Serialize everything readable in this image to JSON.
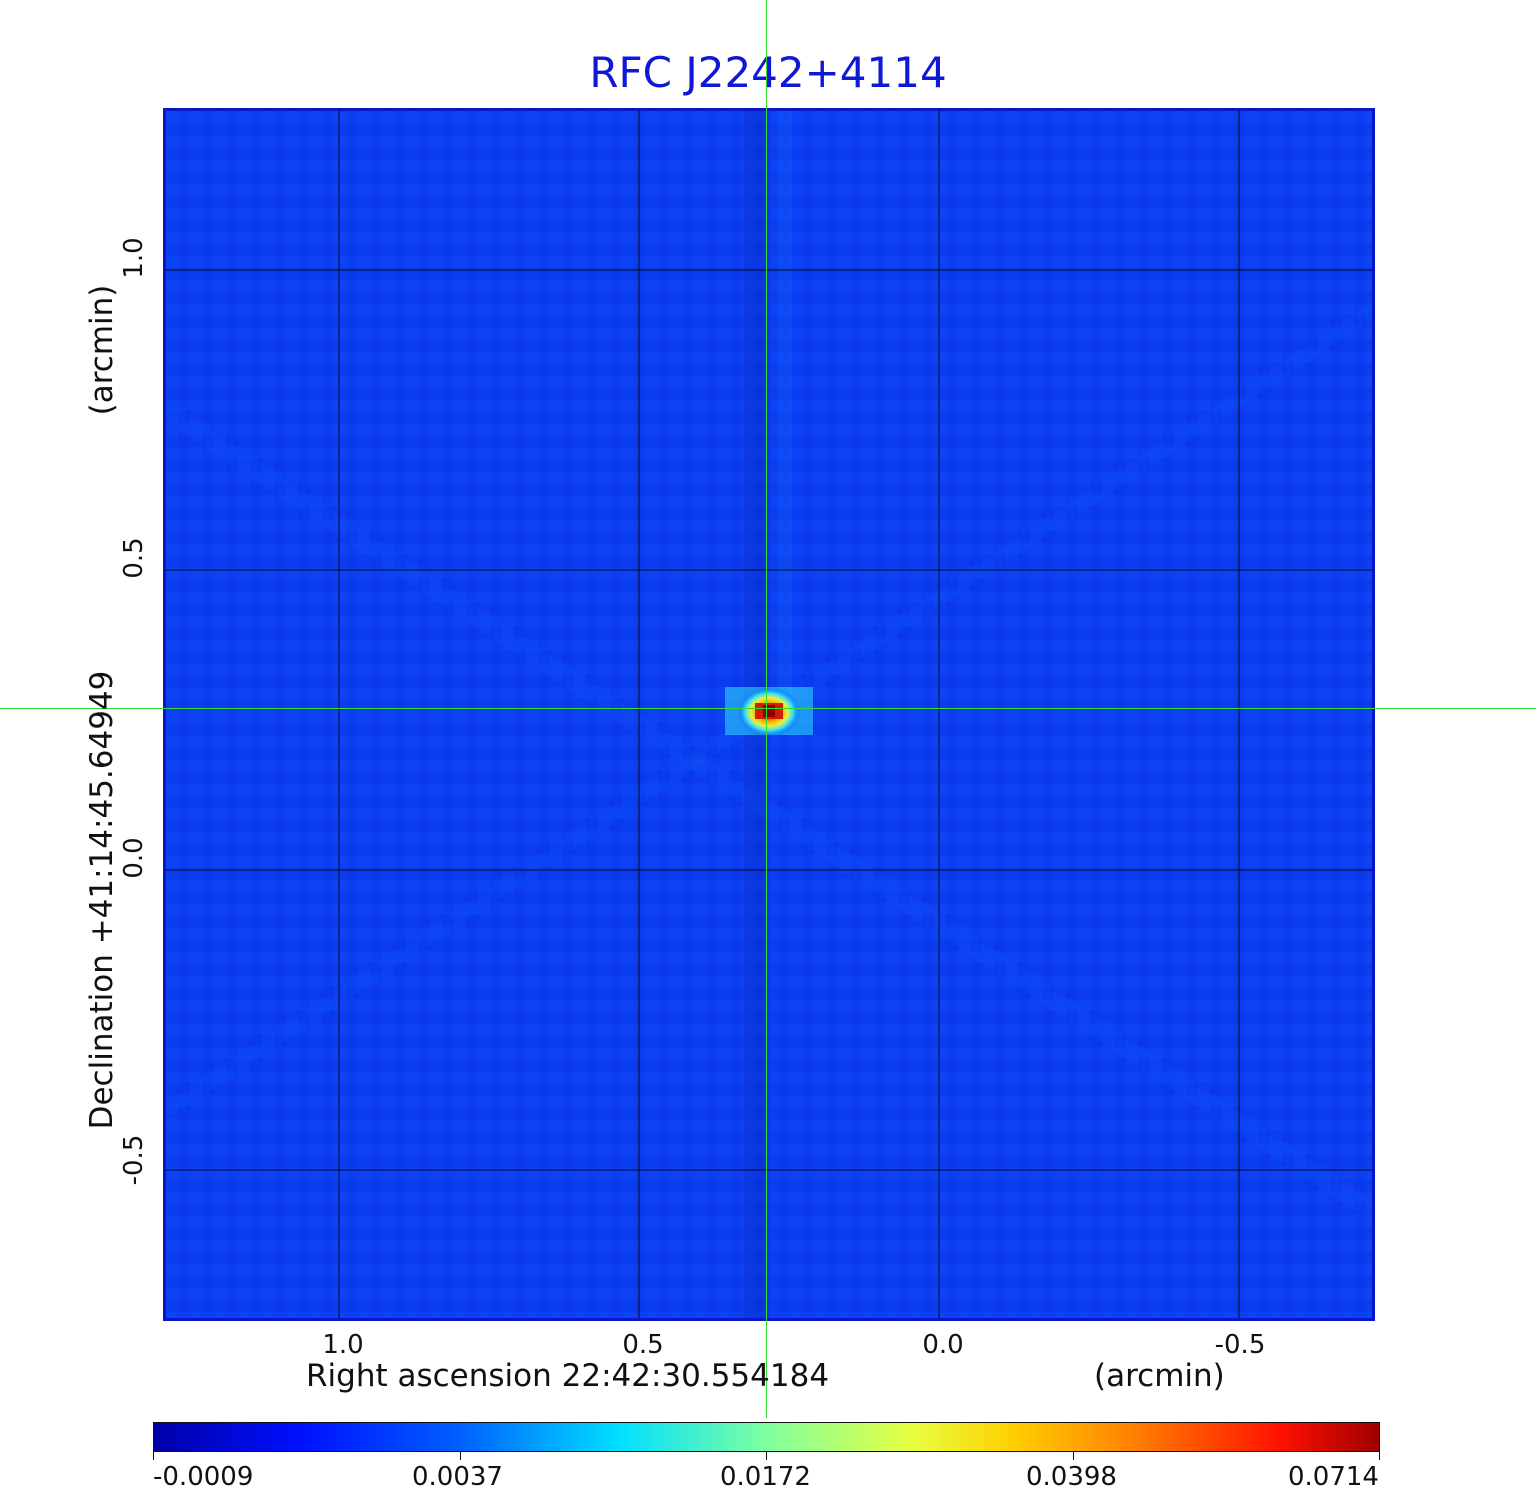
{
  "title": "RFC J2242+4114",
  "x_axis": {
    "label": "Right ascension  22:42:30.554184",
    "unit": "(arcmin)",
    "ticks": [
      "1.0",
      "0.5",
      "0.0",
      "-0.5"
    ]
  },
  "y_axis": {
    "label": "Declination  +41:14:45.64949",
    "unit": "(arcmin)",
    "ticks": [
      "1.0",
      "0.5",
      "0.0",
      "-0.5"
    ]
  },
  "colorbar": {
    "labels": [
      "-0.0009",
      "0.0037",
      "0.0172",
      "0.0398",
      "0.0714"
    ]
  },
  "colors": {
    "frame": "#0a17c8",
    "title": "#1018d6",
    "crosshair": "#33dd33",
    "background_map": "#0b3df0"
  }
}
